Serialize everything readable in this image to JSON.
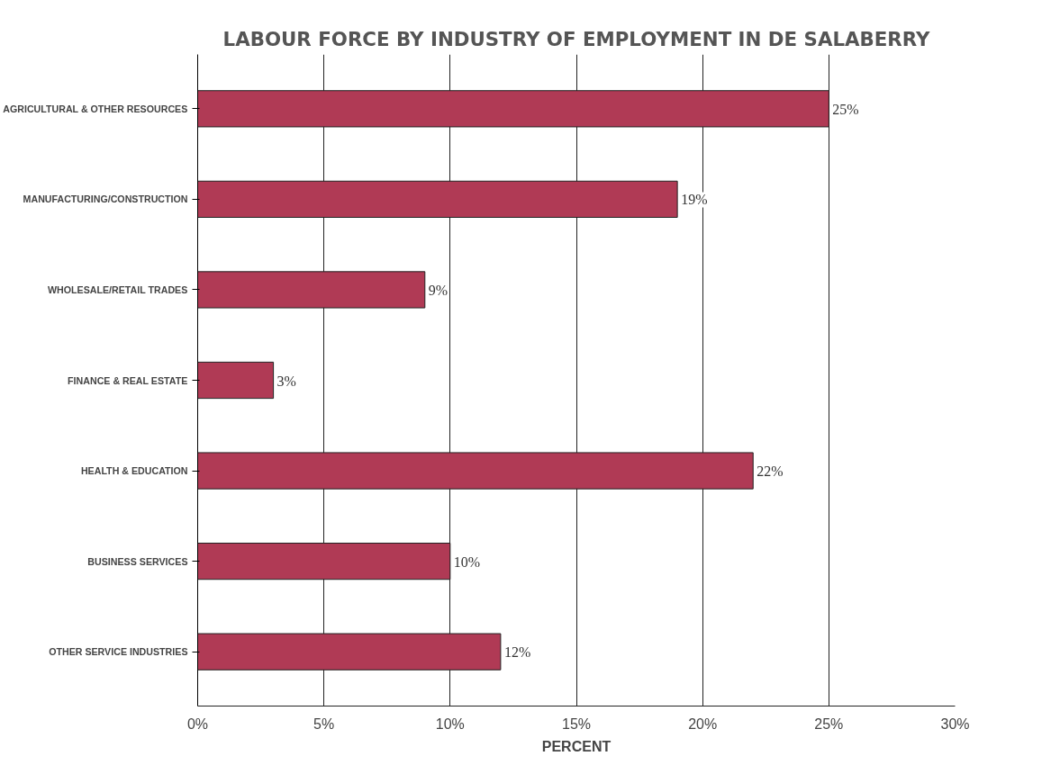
{
  "chart_data": {
    "type": "bar",
    "orientation": "horizontal",
    "title": "LABOUR FORCE BY INDUSTRY OF EMPLOYMENT IN DE SALABERRY",
    "xlabel": "PERCENT",
    "categories": [
      "AGRICULTURAL & OTHER RESOURCES",
      "MANUFACTURING/CONSTRUCTION",
      "WHOLESALE/RETAIL TRADES",
      "FINANCE & REAL ESTATE",
      "HEALTH & EDUCATION",
      "BUSINESS SERVICES",
      "OTHER SERVICE INDUSTRIES"
    ],
    "values": [
      25,
      19,
      9,
      3,
      22,
      10,
      12
    ],
    "value_labels": [
      "25%",
      "19%",
      "9%",
      "3%",
      "22%",
      "10%",
      "12%"
    ],
    "color": "#b03a55",
    "xlim": [
      0,
      30
    ],
    "xticks": [
      {
        "value": 0,
        "label": "0%"
      },
      {
        "value": 5,
        "label": "5%"
      },
      {
        "value": 10,
        "label": "10%"
      },
      {
        "value": 15,
        "label": "15%"
      },
      {
        "value": 20,
        "label": "20%"
      },
      {
        "value": 25,
        "label": "25%"
      },
      {
        "value": 30,
        "label": "30%"
      }
    ],
    "grid": "x"
  }
}
